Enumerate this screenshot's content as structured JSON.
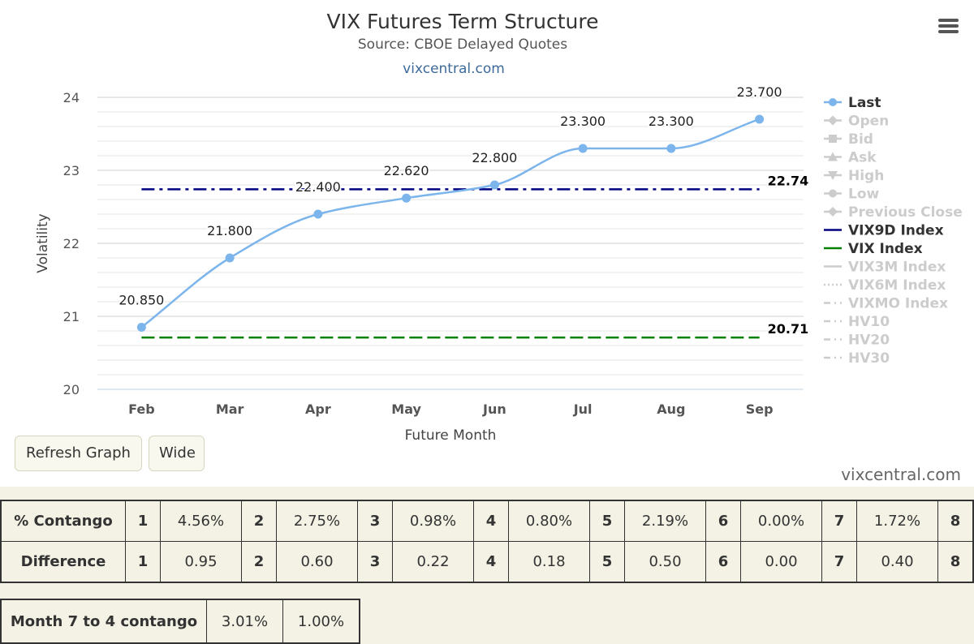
{
  "header": {
    "title": "VIX Futures Term Structure",
    "subtitle": "Source: CBOE Delayed Quotes",
    "brand": "vixcentral.com"
  },
  "chart_data": {
    "type": "line",
    "xlabel": "Future Month",
    "ylabel": "Volatility",
    "categories": [
      "Feb",
      "Mar",
      "Apr",
      "May",
      "Jun",
      "Jul",
      "Aug",
      "Sep"
    ],
    "ylim": [
      20,
      24
    ],
    "yticks": [
      "20",
      "21",
      "22",
      "23",
      "24"
    ],
    "grid": true,
    "legend_position": "right",
    "series": [
      {
        "name": "Last",
        "values": [
          20.85,
          21.8,
          22.4,
          22.62,
          22.8,
          23.3,
          23.3,
          23.7
        ],
        "labels": [
          "20.850",
          "21.800",
          "22.400",
          "22.620",
          "22.800",
          "23.300",
          "23.300",
          "23.700"
        ],
        "color": "#7cb5ec",
        "active": true
      },
      {
        "name": "VIX9D Index",
        "value": 22.74,
        "label": "22.74",
        "color": "#000080",
        "style": "dash-dot",
        "active": true
      },
      {
        "name": "VIX Index",
        "value": 20.71,
        "label": "20.71",
        "color": "#008000",
        "style": "dashed",
        "active": true
      }
    ],
    "legend": [
      {
        "name": "Last",
        "active": true,
        "symbol": "circle",
        "color": "#7cb5ec"
      },
      {
        "name": "Open",
        "active": false,
        "symbol": "diamond"
      },
      {
        "name": "Bid",
        "active": false,
        "symbol": "square"
      },
      {
        "name": "Ask",
        "active": false,
        "symbol": "triangle"
      },
      {
        "name": "High",
        "active": false,
        "symbol": "triangle-down"
      },
      {
        "name": "Low",
        "active": false,
        "symbol": "circle"
      },
      {
        "name": "Previous Close",
        "active": false,
        "symbol": "diamond"
      },
      {
        "name": "VIX9D Index",
        "active": true,
        "symbol": "line",
        "color": "#000080"
      },
      {
        "name": "VIX Index",
        "active": true,
        "symbol": "line",
        "color": "#008000"
      },
      {
        "name": "VIX3M Index",
        "active": false,
        "symbol": "line"
      },
      {
        "name": "VIX6M Index",
        "active": false,
        "symbol": "dotted"
      },
      {
        "name": "VIXMO Index",
        "active": false,
        "symbol": "dash-dot"
      },
      {
        "name": "HV10",
        "active": false,
        "symbol": "dash-dot"
      },
      {
        "name": "HV20",
        "active": false,
        "symbol": "dash-dot"
      },
      {
        "name": "HV30",
        "active": false,
        "symbol": "dash-dot"
      }
    ]
  },
  "controls": {
    "refresh_label": "Refresh Graph",
    "wide_label": "Wide",
    "brand_footer": "vixcentral.com"
  },
  "contango_table": {
    "contango_label": "% Contango",
    "difference_label": "Difference",
    "months": [
      "1",
      "2",
      "3",
      "4",
      "5",
      "6",
      "7",
      "8"
    ],
    "contango": [
      "4.56%",
      "2.75%",
      "0.98%",
      "0.80%",
      "2.19%",
      "0.00%",
      "1.72%"
    ],
    "difference": [
      "0.95",
      "0.60",
      "0.22",
      "0.18",
      "0.50",
      "0.00",
      "0.40"
    ]
  },
  "summary": {
    "label": "Month 7 to 4 contango",
    "value1": "3.01%",
    "value2": "1.00%"
  }
}
